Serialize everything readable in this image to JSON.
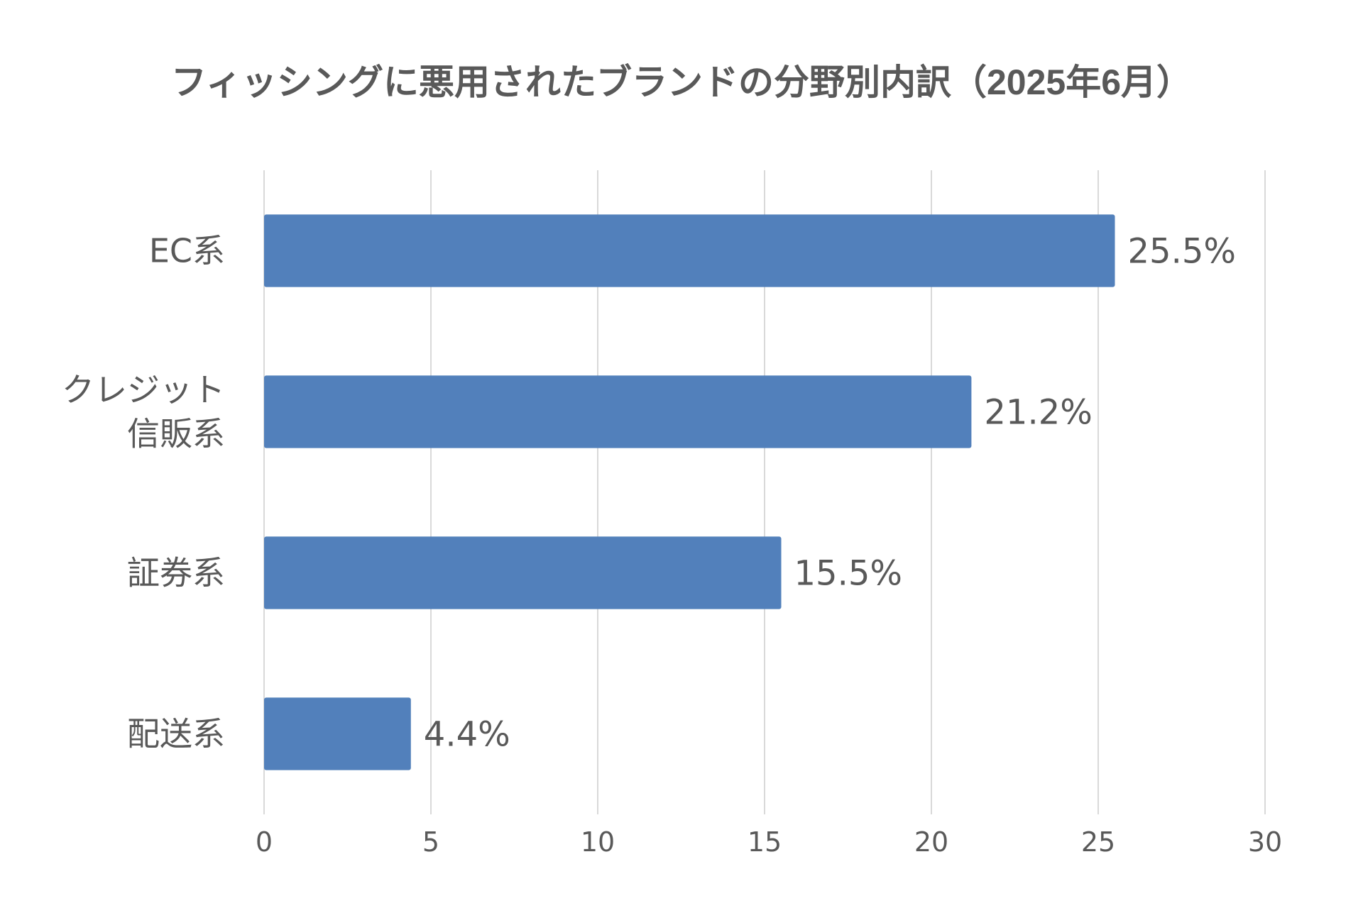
{
  "chart_data": {
    "type": "bar",
    "orientation": "horizontal",
    "title": "フィッシングに悪用されたブランドの分野別内訳（2025年6月）",
    "categories": [
      [
        "EC系"
      ],
      [
        "クレジット",
        "信販系"
      ],
      [
        "証券系"
      ],
      [
        "配送系"
      ]
    ],
    "values": [
      25.5,
      21.2,
      15.5,
      4.4
    ],
    "data_labels": [
      "25.5%",
      "21.2%",
      "15.5%",
      "4.4%"
    ],
    "xlim": [
      0,
      30
    ],
    "xticks": [
      0,
      5,
      10,
      15,
      20,
      25,
      30
    ],
    "xtick_labels": [
      "0",
      "5",
      "10",
      "15",
      "20",
      "25",
      "30"
    ],
    "grid": "vertical",
    "legend": "none",
    "bar_color": "#5280bb"
  }
}
